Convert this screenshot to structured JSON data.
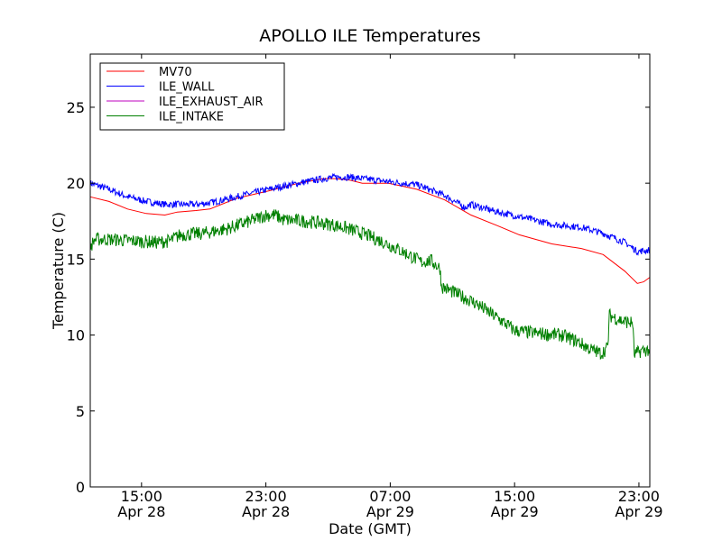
{
  "chart_data": {
    "type": "line",
    "title": "APOLLO ILE Temperatures",
    "xlabel": "Date (GMT)",
    "ylabel": "Temperature (C)",
    "ylim": [
      0,
      28.5
    ],
    "xlim_hours": [
      11.7,
      47.7
    ],
    "yticks": [
      0,
      5,
      10,
      15,
      20,
      25
    ],
    "xticks": [
      {
        "hours": 15,
        "time": "15:00",
        "date": "Apr 28"
      },
      {
        "hours": 23,
        "time": "23:00",
        "date": "Apr 28"
      },
      {
        "hours": 31,
        "time": "07:00",
        "date": "Apr 29"
      },
      {
        "hours": 39,
        "time": "15:00",
        "date": "Apr 29"
      },
      {
        "hours": 47,
        "time": "23:00",
        "date": "Apr 29"
      }
    ],
    "x_reference": "Apr 28 00:00 GMT = 0 hours",
    "grid": false,
    "legend": {
      "placement": "top-left"
    },
    "series": [
      {
        "name": "MV70",
        "color": "#ff0000",
        "noise": 0,
        "points": [
          [
            11.7,
            19.1
          ],
          [
            12.9,
            18.8
          ],
          [
            14.1,
            18.3
          ],
          [
            15.3,
            18.0
          ],
          [
            16.5,
            17.9
          ],
          [
            17.3,
            18.1
          ],
          [
            18.5,
            18.2
          ],
          [
            19.4,
            18.3
          ],
          [
            21.1,
            19.0
          ],
          [
            23.2,
            19.5
          ],
          [
            25.1,
            20.0
          ],
          [
            26.7,
            20.3
          ],
          [
            27.5,
            20.3
          ],
          [
            28.4,
            20.2
          ],
          [
            29.2,
            20.0
          ],
          [
            30.9,
            20.0
          ],
          [
            32.7,
            19.6
          ],
          [
            34.5,
            18.9
          ],
          [
            36.2,
            17.9
          ],
          [
            37.9,
            17.2
          ],
          [
            39.3,
            16.6
          ],
          [
            41.4,
            16.0
          ],
          [
            43.3,
            15.7
          ],
          [
            44.7,
            15.3
          ],
          [
            46.1,
            14.2
          ],
          [
            46.9,
            13.4
          ],
          [
            47.3,
            13.5
          ],
          [
            47.7,
            13.8
          ]
        ]
      },
      {
        "name": "ILE_WALL",
        "color": "#0000ff",
        "noise": 0.45,
        "points": [
          [
            11.7,
            20.0
          ],
          [
            12.9,
            19.6
          ],
          [
            14.1,
            19.1
          ],
          [
            15.3,
            18.8
          ],
          [
            16.5,
            18.6
          ],
          [
            17.3,
            18.6
          ],
          [
            18.5,
            18.6
          ],
          [
            19.4,
            18.7
          ],
          [
            21.1,
            19.1
          ],
          [
            23.2,
            19.6
          ],
          [
            25.1,
            20.0
          ],
          [
            26.7,
            20.3
          ],
          [
            27.5,
            20.4
          ],
          [
            28.4,
            20.4
          ],
          [
            29.2,
            20.3
          ],
          [
            30.9,
            20.1
          ],
          [
            32.7,
            19.9
          ],
          [
            34.5,
            19.2
          ],
          [
            35.8,
            18.4
          ],
          [
            36.2,
            18.6
          ],
          [
            37.9,
            18.1
          ],
          [
            39.3,
            17.8
          ],
          [
            41.4,
            17.3
          ],
          [
            43.3,
            17.1
          ],
          [
            44.7,
            16.7
          ],
          [
            46.1,
            16.1
          ],
          [
            46.9,
            15.5
          ],
          [
            47.7,
            15.6
          ]
        ]
      },
      {
        "name": "ILE_EXHAUST_AIR",
        "color": "#bf00bf",
        "noise": 0,
        "points": []
      },
      {
        "name": "ILE_INTAKE",
        "color": "#008000",
        "noise": 0.9,
        "points": [
          [
            11.7,
            15.8
          ],
          [
            12.0,
            16.3
          ],
          [
            13.0,
            16.3
          ],
          [
            14.5,
            16.2
          ],
          [
            16.0,
            16.1
          ],
          [
            16.8,
            16.2
          ],
          [
            17.5,
            16.6
          ],
          [
            19.0,
            16.7
          ],
          [
            20.5,
            17.0
          ],
          [
            22.0,
            17.5
          ],
          [
            23.0,
            17.9
          ],
          [
            23.6,
            17.9
          ],
          [
            24.1,
            17.6
          ],
          [
            25.5,
            17.5
          ],
          [
            27.1,
            17.3
          ],
          [
            28.0,
            17.1
          ],
          [
            29.2,
            16.7
          ],
          [
            30.4,
            16.2
          ],
          [
            31.6,
            15.6
          ],
          [
            32.5,
            15.1
          ],
          [
            33.0,
            14.8
          ],
          [
            33.6,
            14.9
          ],
          [
            34.2,
            14.4
          ],
          [
            34.3,
            13.2
          ],
          [
            35.5,
            12.6
          ],
          [
            36.5,
            12.1
          ],
          [
            37.5,
            11.4
          ],
          [
            38.5,
            10.7
          ],
          [
            39.0,
            10.3
          ],
          [
            40.5,
            10.1
          ],
          [
            42.0,
            10.0
          ],
          [
            43.0,
            9.6
          ],
          [
            44.0,
            9.0
          ],
          [
            44.6,
            8.8
          ],
          [
            45.0,
            9.2
          ],
          [
            45.1,
            11.3
          ],
          [
            46.0,
            10.9
          ],
          [
            46.6,
            10.8
          ],
          [
            46.7,
            8.7
          ],
          [
            47.2,
            9.0
          ],
          [
            47.7,
            9.0
          ]
        ]
      }
    ]
  }
}
